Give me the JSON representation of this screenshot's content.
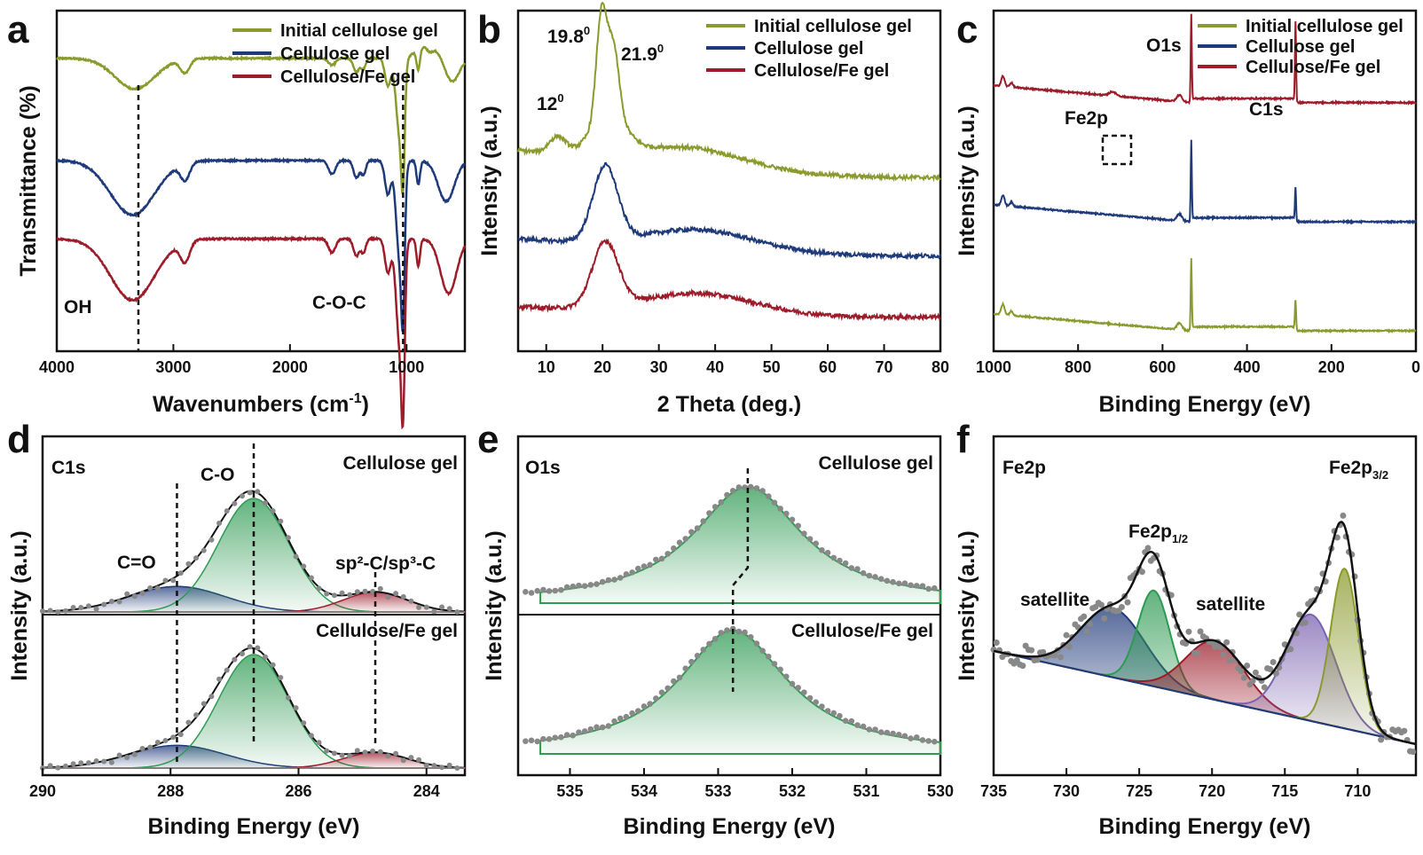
{
  "colors": {
    "olive": "#8a9a2c",
    "blue": "#1f3a7a",
    "red": "#9c1c2a",
    "green": "#2e9a52",
    "purple": "#7a62b0",
    "gray": "#888888",
    "black": "#111111"
  },
  "panels": [
    {
      "letter": "a",
      "chart_data": {
        "type": "line",
        "xlabel_main": "Wavenumbers (cm",
        "xlabel_sup": "-1",
        "xlabel_tail": ")",
        "ylabel": "Transmittance (%)",
        "xlim": [
          4000,
          500
        ],
        "xticks": [
          4000,
          3000,
          2000,
          1000
        ],
        "legend": [
          "Initial cellulose gel",
          "Cellulose gel",
          "Cellulose/Fe gel"
        ],
        "annotations": [
          "OH",
          "C-O-C"
        ],
        "markers_x": [
          3300,
          1030
        ],
        "series": [
          {
            "name": "Initial cellulose gel",
            "color": "olive",
            "offset": 0.86,
            "dips": [
              [
                3330,
                0.09,
                170
              ],
              [
                2900,
                0.04,
                40
              ],
              [
                1640,
                0.02,
                30
              ],
              [
                1430,
                0.04,
                25
              ],
              [
                1370,
                0.03,
                20
              ],
              [
                1160,
                0.08,
                25
              ],
              [
                1060,
                0.22,
                30
              ],
              [
                1030,
                0.26,
                15
              ],
              [
                900,
                0.06,
                15
              ],
              [
                800,
                0.02,
                30
              ],
              [
                610,
                0.07,
                60
              ]
            ],
            "bumps": [
              [
                820,
                0.04,
                90
              ]
            ]
          },
          {
            "name": "Cellulose gel",
            "color": "blue",
            "offset": 0.56,
            "dips": [
              [
                3350,
                0.16,
                190
              ],
              [
                2900,
                0.05,
                40
              ],
              [
                1640,
                0.04,
                30
              ],
              [
                1430,
                0.05,
                25
              ],
              [
                1370,
                0.04,
                20
              ],
              [
                1160,
                0.1,
                25
              ],
              [
                1060,
                0.28,
                30
              ],
              [
                1030,
                0.32,
                15
              ],
              [
                900,
                0.07,
                15
              ],
              [
                660,
                0.12,
                70
              ]
            ],
            "bumps": []
          },
          {
            "name": "Cellulose/Fe gel",
            "color": "red",
            "offset": 0.33,
            "dips": [
              [
                3350,
                0.18,
                190
              ],
              [
                2900,
                0.06,
                40
              ],
              [
                1640,
                0.04,
                30
              ],
              [
                1430,
                0.05,
                25
              ],
              [
                1370,
                0.04,
                20
              ],
              [
                1160,
                0.1,
                25
              ],
              [
                1060,
                0.3,
                30
              ],
              [
                1030,
                0.36,
                15
              ],
              [
                900,
                0.08,
                15
              ],
              [
                640,
                0.16,
                70
              ]
            ],
            "bumps": []
          }
        ]
      }
    },
    {
      "letter": "b",
      "chart_data": {
        "type": "line",
        "xlabel": "2 Theta (deg.)",
        "ylabel": "Intensity (a.u.)",
        "xlim": [
          5,
          80
        ],
        "xticks": [
          10,
          20,
          30,
          40,
          50,
          60,
          70,
          80
        ],
        "legend": [
          "Initial cellulose gel",
          "Cellulose gel",
          "Cellulose/Fe gel"
        ],
        "annotations": [
          "19.8",
          "21.9",
          "12"
        ],
        "annotation_sup": "0",
        "series": [
          {
            "name": "Initial cellulose gel",
            "color": "olive",
            "base": 0.51,
            "peaks": [
              [
                12.0,
                0.05,
                1.5
              ],
              [
                19.8,
                0.3,
                0.9
              ],
              [
                21.9,
                0.2,
                1.0
              ],
              [
                21.0,
                0.12,
                3.0
              ],
              [
                35,
                0.06,
                10
              ]
            ],
            "baseline_slope": 0.08
          },
          {
            "name": "Cellulose gel",
            "color": "blue",
            "base": 0.28,
            "peaks": [
              [
                20.5,
                0.22,
                2.2
              ],
              [
                37,
                0.06,
                10
              ]
            ],
            "baseline_slope": 0.05
          },
          {
            "name": "Cellulose/Fe gel",
            "color": "red",
            "base": 0.1,
            "peaks": [
              [
                20.5,
                0.19,
                2.3
              ],
              [
                37,
                0.06,
                10
              ]
            ],
            "baseline_slope": 0.03
          }
        ]
      }
    },
    {
      "letter": "c",
      "chart_data": {
        "type": "line",
        "xlabel": "Binding Energy (eV)",
        "ylabel": "Intensity (a.u.)",
        "xlim": [
          1000,
          0
        ],
        "xticks": [
          1000,
          800,
          600,
          400,
          200,
          0
        ],
        "legend": [
          "Initial cellulose gel",
          "Cellulose gel",
          "Cellulose/Fe gel"
        ],
        "annotations": [
          "O1s",
          "C1s",
          "Fe2p"
        ],
        "series": [
          {
            "name": "Cellulose/Fe gel",
            "color": "red",
            "base": 0.73,
            "o1s": 0.25,
            "c1s": 0.24
          },
          {
            "name": "Cellulose gel",
            "color": "blue",
            "base": 0.38,
            "o1s": 0.23,
            "c1s": 0.1
          },
          {
            "name": "Initial cellulose gel",
            "color": "olive",
            "base": 0.06,
            "o1s": 0.2,
            "c1s": 0.09
          }
        ]
      }
    },
    {
      "letter": "d",
      "chart_data": {
        "type": "line",
        "xlabel": "Binding Energy (eV)",
        "ylabel": "Intensity (a.u.)",
        "xlim": [
          290,
          283.4
        ],
        "xticks": [
          290,
          288,
          286,
          284
        ],
        "labels": [
          "C1s",
          "C-O",
          "Cellulose gel",
          "C=O",
          "sp²-C/sp³-C",
          "Cellulose/Fe gel"
        ],
        "markers_x": [
          287.9,
          286.7,
          284.8
        ],
        "subplots": [
          {
            "name": "Cellulose gel",
            "components": [
              [
                287.9,
                0.18,
                0.75,
                "blue"
              ],
              [
                286.7,
                0.8,
                0.55,
                "green"
              ],
              [
                284.8,
                0.14,
                0.5,
                "red"
              ]
            ]
          },
          {
            "name": "Cellulose/Fe gel",
            "components": [
              [
                287.9,
                0.16,
                0.75,
                "blue"
              ],
              [
                286.7,
                0.8,
                0.55,
                "green"
              ],
              [
                284.8,
                0.11,
                0.5,
                "red"
              ]
            ]
          }
        ]
      }
    },
    {
      "letter": "e",
      "chart_data": {
        "type": "line",
        "xlabel": "Binding Energy (eV)",
        "ylabel": "Intensity (a.u.)",
        "xlim": [
          535.7,
          530
        ],
        "xticks": [
          535,
          534,
          533,
          532,
          531,
          530
        ],
        "labels": [
          "O1s",
          "Cellulose gel",
          "Cellulose/Fe gel"
        ],
        "subplots": [
          {
            "name": "Cellulose gel",
            "center": 532.6,
            "height": 0.82,
            "width": 1.2
          },
          {
            "name": "Cellulose/Fe gel",
            "center": 532.8,
            "height": 0.82,
            "width": 1.2
          }
        ]
      }
    },
    {
      "letter": "f",
      "chart_data": {
        "type": "line",
        "xlabel": "Binding Energy (eV)",
        "ylabel": "Intensity (a.u.)",
        "xlim": [
          735,
          706
        ],
        "xticks": [
          735,
          730,
          725,
          720,
          715,
          710
        ],
        "labels": [
          "Fe2p",
          "satellite",
          "satellite"
        ],
        "label_sub_12": "1/2",
        "label_sub_32": "3/2",
        "label_fe2p": "Fe2p",
        "background": [
          [
            735,
            0.38
          ],
          [
            706,
            0.03
          ]
        ],
        "components": [
          [
            726.8,
            0.26,
            2.2,
            "blue"
          ],
          [
            724.0,
            0.36,
            1.1,
            "green"
          ],
          [
            719.8,
            0.22,
            2.0,
            "red"
          ],
          [
            713.2,
            0.4,
            1.7,
            "purple"
          ],
          [
            710.9,
            0.6,
            0.95,
            "olive"
          ]
        ]
      }
    }
  ]
}
